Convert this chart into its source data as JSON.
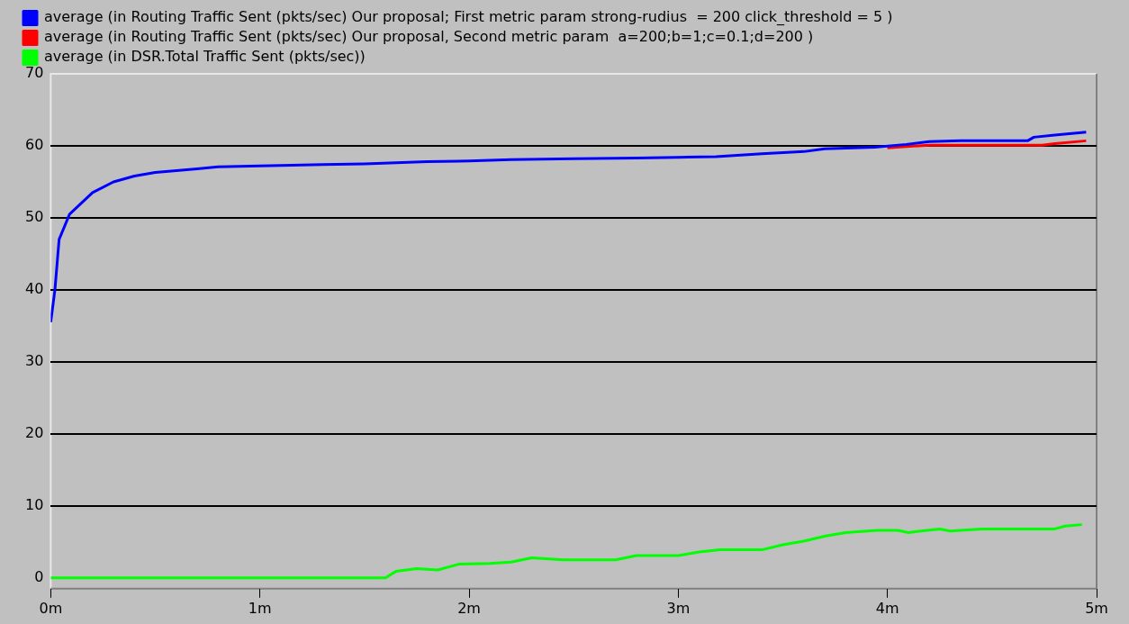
{
  "chart_data": {
    "type": "line",
    "legend": "top left",
    "grid": "y",
    "marker": "none",
    "line_style": "solid",
    "xlim": [
      0,
      5
    ],
    "ylim": [
      -1.5,
      70
    ],
    "xticks": [
      {
        "value": 0,
        "label": "0m"
      },
      {
        "value": 1,
        "label": "1m"
      },
      {
        "value": 2,
        "label": "2m"
      },
      {
        "value": 3,
        "label": "3m"
      },
      {
        "value": 4,
        "label": "4m"
      },
      {
        "value": 5,
        "label": "5m"
      }
    ],
    "yticks": [
      0,
      10,
      20,
      30,
      40,
      50,
      60,
      70
    ],
    "series": [
      {
        "name": "average (in Routing Traffic Sent (pkts/sec) Our proposal; First metric param strong-rudius  = 200 click_threshold = 5 )",
        "color": "#0000ff",
        "x": [
          0,
          0.02,
          0.04,
          0.09,
          0.2,
          0.3,
          0.4,
          0.5,
          0.7,
          0.8,
          1.0,
          1.3,
          1.5,
          1.8,
          2.0,
          2.2,
          2.5,
          2.8,
          3.0,
          3.18,
          3.4,
          3.6,
          3.7,
          3.94,
          4.09,
          4.2,
          4.35,
          4.67,
          4.7,
          4.8,
          4.95
        ],
        "values": [
          35.5,
          40,
          47,
          50.5,
          53.5,
          55,
          55.8,
          56.3,
          56.8,
          57.1,
          57.2,
          57.4,
          57.5,
          57.8,
          57.9,
          58.1,
          58.2,
          58.3,
          58.4,
          58.5,
          58.9,
          59.2,
          59.6,
          59.8,
          60.2,
          60.6,
          60.7,
          60.7,
          61.2,
          61.5,
          61.9
        ]
      },
      {
        "name": "average (in Routing Traffic Sent (pkts/sec) Our proposal, Second metric param  a=200;b=1;c=0.1;d=200 )",
        "color": "#ff0000",
        "x": [
          4.0,
          4.09,
          4.2,
          4.74,
          4.8,
          4.95
        ],
        "values": [
          59.7,
          59.9,
          60.1,
          60.1,
          60.3,
          60.7
        ]
      },
      {
        "name": "average (in DSR.Total Traffic Sent (pkts/sec))",
        "color": "#00ff00",
        "x": [
          0,
          1.6,
          1.65,
          1.75,
          1.85,
          1.95,
          2.1,
          2.2,
          2.3,
          2.45,
          2.7,
          2.8,
          3.0,
          3.1,
          3.2,
          3.4,
          3.5,
          3.6,
          3.7,
          3.8,
          3.95,
          4.05,
          4.1,
          4.25,
          4.3,
          4.45,
          4.8,
          4.85,
          4.93
        ],
        "values": [
          0,
          0,
          0.9,
          1.3,
          1.1,
          1.9,
          2.0,
          2.2,
          2.8,
          2.5,
          2.5,
          3.1,
          3.1,
          3.6,
          3.9,
          3.9,
          4.6,
          5.1,
          5.8,
          6.3,
          6.6,
          6.6,
          6.3,
          6.8,
          6.5,
          6.8,
          6.8,
          7.2,
          7.4
        ]
      }
    ]
  }
}
